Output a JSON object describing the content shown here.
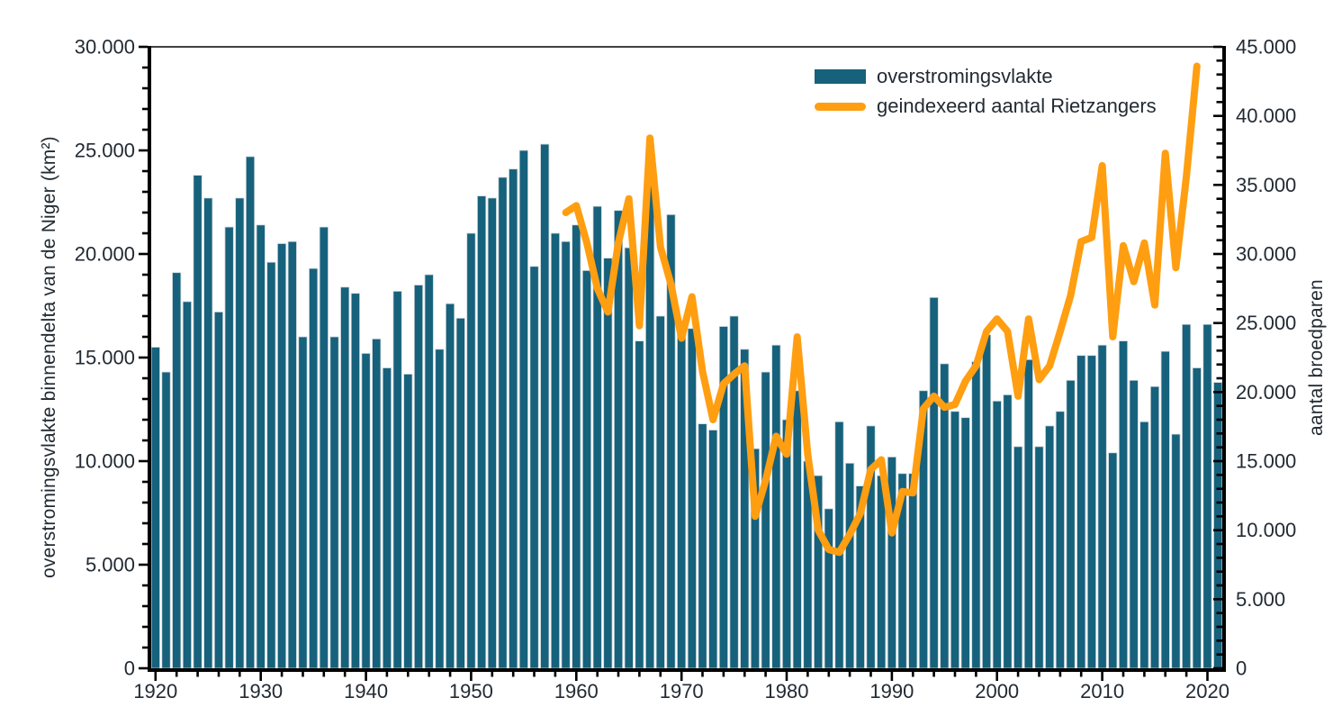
{
  "chart_data": {
    "type": "combo",
    "title": "",
    "grid": false,
    "legend_position": "top-right-inside",
    "years": [
      1920,
      1921,
      1922,
      1923,
      1924,
      1925,
      1926,
      1927,
      1928,
      1929,
      1930,
      1931,
      1932,
      1933,
      1934,
      1935,
      1936,
      1937,
      1938,
      1939,
      1940,
      1941,
      1942,
      1943,
      1944,
      1945,
      1946,
      1947,
      1948,
      1949,
      1950,
      1951,
      1952,
      1953,
      1954,
      1955,
      1956,
      1957,
      1958,
      1959,
      1960,
      1961,
      1962,
      1963,
      1964,
      1965,
      1966,
      1967,
      1968,
      1969,
      1970,
      1971,
      1972,
      1973,
      1974,
      1975,
      1976,
      1977,
      1978,
      1979,
      1980,
      1981,
      1982,
      1983,
      1984,
      1985,
      1986,
      1987,
      1988,
      1989,
      1990,
      1991,
      1992,
      1993,
      1994,
      1995,
      1996,
      1997,
      1998,
      1999,
      2000,
      2001,
      2002,
      2003,
      2004,
      2005,
      2006,
      2007,
      2008,
      2009,
      2010,
      2011,
      2012,
      2013,
      2014,
      2015,
      2016,
      2017,
      2018,
      2019,
      2020,
      2021
    ],
    "series": [
      {
        "name": "overstromingsvlakte",
        "type": "bar",
        "axis": "left",
        "color": "#16617b",
        "values": [
          15500,
          14300,
          19100,
          17700,
          23800,
          22700,
          17200,
          21300,
          22700,
          24700,
          21400,
          19600,
          20500,
          20600,
          16000,
          19300,
          21300,
          16000,
          18400,
          18100,
          15200,
          15900,
          14500,
          18200,
          14200,
          18500,
          19000,
          15400,
          17600,
          16900,
          21000,
          22800,
          22700,
          23700,
          24100,
          25000,
          19400,
          25300,
          21000,
          20600,
          21400,
          19200,
          22300,
          19800,
          22100,
          20300,
          15800,
          23300,
          17000,
          21900,
          16300,
          16400,
          11800,
          11500,
          16500,
          17000,
          15400,
          10600,
          14300,
          15600,
          12000,
          13400,
          10000,
          9300,
          7700,
          11900,
          9900,
          8800,
          11700,
          9300,
          10200,
          9400,
          9400,
          13400,
          17900,
          14700,
          12400,
          12100,
          14800,
          16100,
          12900,
          13200,
          10700,
          14900,
          10700,
          11700,
          12400,
          13900,
          15100,
          15100,
          15600,
          10400,
          15800,
          13900,
          11900,
          13600,
          15300,
          11300,
          16600,
          14500,
          16600,
          13800
        ]
      },
      {
        "name": "geindexeerd aantal Rietzangers",
        "type": "line",
        "axis": "right",
        "color": "#ff9e11",
        "start_year": 1959,
        "values": [
          33000,
          33500,
          30800,
          27500,
          25800,
          30800,
          34000,
          24800,
          38400,
          30500,
          27800,
          23900,
          26900,
          21500,
          18000,
          20600,
          21300,
          21900,
          11000,
          13600,
          16800,
          15500,
          24000,
          15500,
          10000,
          8600,
          8400,
          9700,
          11200,
          14400,
          15100,
          9800,
          12800,
          12700,
          18800,
          19700,
          18900,
          19100,
          20800,
          21900,
          24400,
          25300,
          24400,
          19700,
          25300,
          20900,
          21900,
          24400,
          27000,
          30900,
          31200,
          36400,
          24000,
          30600,
          28000,
          30800,
          26300,
          37300,
          29000,
          35600,
          43600
        ]
      }
    ],
    "left_axis": {
      "label": "overstromingsvlakte binnendelta van de Niger (km²)",
      "min": 0,
      "max": 30000,
      "major_step": 5000,
      "minor_step": 1000,
      "tick_labels": [
        "0",
        "5.000",
        "10.000",
        "15.000",
        "20.000",
        "25.000",
        "30.000"
      ]
    },
    "right_axis": {
      "label": "aantal broedparen",
      "min": 0,
      "max": 45000,
      "major_step": 5000,
      "minor_step": 1000,
      "tick_labels": [
        "0",
        "5.000",
        "10.000",
        "15.000",
        "20.000",
        "25.000",
        "30.000",
        "35.000",
        "40.000",
        "45.000"
      ]
    },
    "x_axis": {
      "min": 1920,
      "max": 2021,
      "major_step": 10,
      "minor_step": 2,
      "tick_labels": [
        "1920",
        "1930",
        "1940",
        "1950",
        "1960",
        "1970",
        "1980",
        "1990",
        "2000",
        "2010",
        "2020"
      ]
    },
    "colors": {
      "axis": "#000000",
      "text": "#222a33",
      "background": "#ffffff"
    }
  },
  "legend": {
    "items": [
      {
        "label": "overstromingsvlakte"
      },
      {
        "label": "geindexeerd aantal Rietzangers"
      }
    ]
  }
}
